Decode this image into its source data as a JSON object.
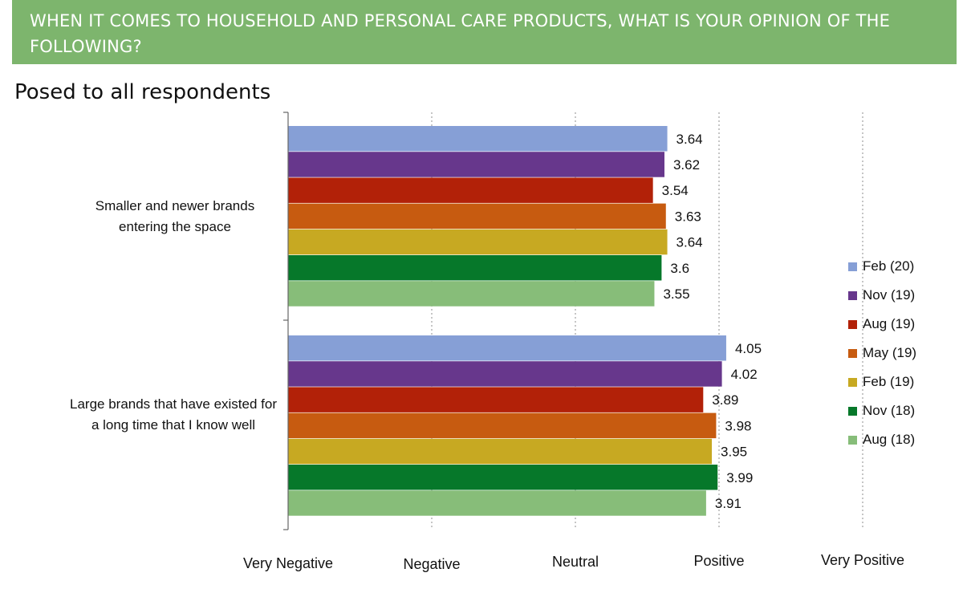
{
  "header": {
    "question": "WHEN IT COMES TO HOUSEHOLD AND PERSONAL CARE PRODUCTS, WHAT IS YOUR OPINION OF THE FOLLOWING?"
  },
  "subtitle": "Posed to all respondents",
  "chart_data": {
    "type": "bar",
    "orientation": "horizontal",
    "categories": [
      "Smaller and newer brands entering the space",
      "Large brands that have existed for a long time that I know well"
    ],
    "series": [
      {
        "name": "Feb (20)",
        "color": "#869fd6",
        "values": [
          3.64,
          4.05
        ]
      },
      {
        "name": "Nov (19)",
        "color": "#67378c",
        "values": [
          3.62,
          4.02
        ]
      },
      {
        "name": "Aug (19)",
        "color": "#b22108",
        "values": [
          3.54,
          3.89
        ]
      },
      {
        "name": "May (19)",
        "color": "#c75b10",
        "values": [
          3.63,
          3.98
        ]
      },
      {
        "name": "Feb (19)",
        "color": "#c7a922",
        "values": [
          3.64,
          3.95
        ]
      },
      {
        "name": "Nov (18)",
        "color": "#06782a",
        "values": [
          3.6,
          3.99
        ]
      },
      {
        "name": "Aug (18)",
        "color": "#87bd79",
        "values": [
          3.55,
          3.91
        ]
      }
    ],
    "data_labels": [
      [
        "3.64",
        "3.62",
        "3.54",
        "3.63",
        "3.64",
        "3.6",
        "3.55"
      ],
      [
        "4.05",
        "4.02",
        "3.89",
        "3.98",
        "3.95",
        "3.99",
        "3.91"
      ]
    ],
    "x_range": [
      1,
      5
    ],
    "x_tick_labels": [
      "Very Negative",
      "Negative",
      "Neutral",
      "Positive",
      "Very Positive"
    ],
    "gridlines": "dotted vertical",
    "legend_position": "right"
  }
}
